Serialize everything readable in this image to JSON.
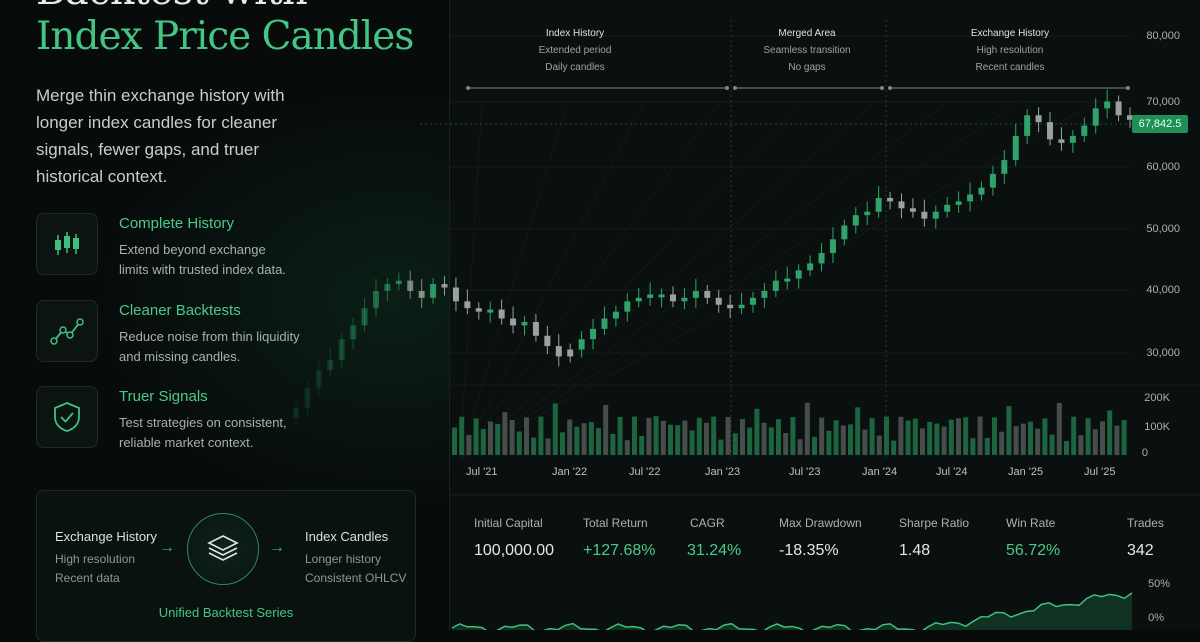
{
  "headline": {
    "line1": "Backtest with",
    "line2": "Index Price Candles"
  },
  "lead": [
    "Merge thin exchange history with",
    "longer index candles for cleaner",
    "signals, fewer gaps, and truer",
    "historical context."
  ],
  "features": [
    {
      "title": "Complete History",
      "desc": [
        "Extend beyond exchange",
        "limits with trusted index data."
      ],
      "icon": "candlestick-icon"
    },
    {
      "title": "Cleaner Backtests",
      "desc": [
        "Reduce noise from thin liquidity",
        "and missing candles."
      ],
      "icon": "trend-line-icon"
    },
    {
      "title": "Truer Signals",
      "desc": [
        "Test strategies on consistent,",
        "reliable market context."
      ],
      "icon": "shield-check-icon"
    }
  ],
  "flow": {
    "left": {
      "title": "Exchange History",
      "sub1": "High resolution",
      "sub2": "Recent data"
    },
    "right": {
      "title": "Index Candles",
      "sub1": "Longer history",
      "sub2": "Consistent OHLCV"
    },
    "center_icon": "layers-icon",
    "arrow": "→",
    "caption": "Unified Backtest Series"
  },
  "segments": [
    {
      "title": "Index History",
      "sub1": "Extended period",
      "sub2": "Daily candles"
    },
    {
      "title": "Merged Area",
      "sub1": "Seamless transition",
      "sub2": "No gaps"
    },
    {
      "title": "Exchange History",
      "sub1": "High resolution",
      "sub2": "Recent candles"
    }
  ],
  "price_axis": [
    "80,000",
    "70,000",
    "60,000",
    "50,000",
    "40,000",
    "30,000"
  ],
  "volume_axis": [
    "200K",
    "100K",
    "0"
  ],
  "equity_axis": [
    "50%",
    "0%"
  ],
  "current_price": "67,842.5",
  "x_axis": [
    "Jul '21",
    "Jan '22",
    "Jul '22",
    "Jan '23",
    "Jul '23",
    "Jan '24",
    "Jul '24",
    "Jan '25",
    "Jul '25"
  ],
  "stats": [
    {
      "label": "Initial Capital",
      "value": "100,000.00",
      "tone": "neutral"
    },
    {
      "label": "Total Return",
      "value": "+127.68%",
      "tone": "positive"
    },
    {
      "label": "CAGR",
      "value": "31.24%",
      "tone": "positive"
    },
    {
      "label": "Max Drawdown",
      "value": "-18.35%",
      "tone": "neutral"
    },
    {
      "label": "Sharpe Ratio",
      "value": "1.48",
      "tone": "neutral"
    },
    {
      "label": "Win Rate",
      "value": "56.72%",
      "tone": "positive"
    },
    {
      "label": "Trades",
      "value": "342",
      "tone": "neutral"
    }
  ],
  "colors": {
    "accent": "#45c585",
    "up": "#2fa36a",
    "down": "#9aa29f",
    "panel": "#0a100f"
  },
  "chart_data": {
    "type": "candlestick",
    "price_closes": [
      26000,
      29000,
      31500,
      33000,
      36000,
      38000,
      40500,
      43000,
      44000,
      44500,
      43000,
      42000,
      44000,
      43500,
      41500,
      40500,
      40000,
      40300,
      39000,
      38000,
      38500,
      36500,
      35000,
      33500,
      34500,
      36000,
      37500,
      39000,
      40000,
      41500,
      42000,
      42500,
      42500,
      41500,
      42000,
      43000,
      42000,
      41000,
      40500,
      41000,
      42000,
      43000,
      44500,
      44800,
      46000,
      47000,
      48500,
      50500,
      52500,
      54000,
      54500,
      56500,
      56000,
      55000,
      54500,
      53500,
      54500,
      55500,
      56000,
      57000,
      58000,
      60000,
      62000,
      65500,
      68500,
      67500,
      65000,
      64500,
      65500,
      67000,
      69500,
      70500,
      68500,
      67842.5
    ],
    "volume_range": [
      0,
      200000
    ],
    "equity_range_pct": [
      0,
      50
    ],
    "price_range": [
      25000,
      80000
    ]
  }
}
